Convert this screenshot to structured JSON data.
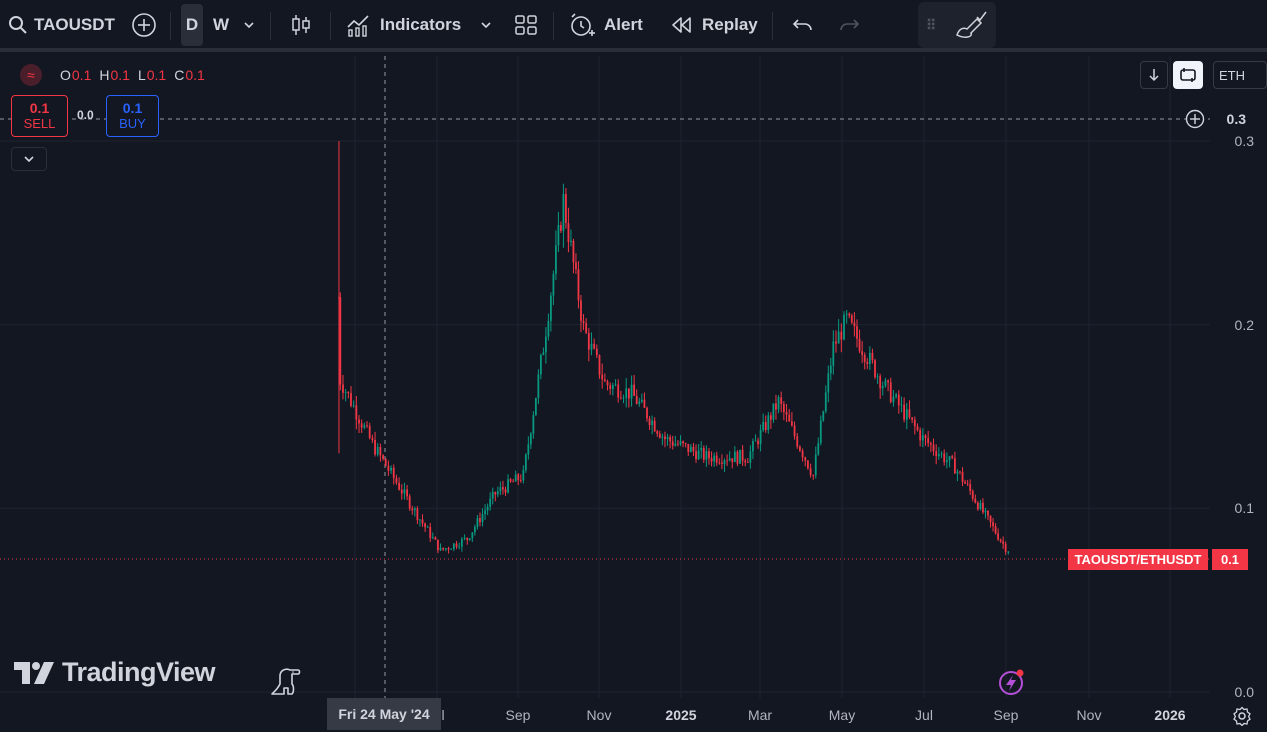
{
  "toolbar": {
    "symbol": "TAOUSDT",
    "interval_d": "D",
    "interval_w": "W",
    "indicators_label": "Indicators",
    "alert_label": "Alert",
    "replay_label": "Replay"
  },
  "legend": {
    "o_key": "O",
    "o_val": "0.1",
    "h_key": "H",
    "h_val": "0.1",
    "l_key": "L",
    "l_val": "0.1",
    "c_key": "C",
    "c_val": "0.1"
  },
  "trade": {
    "sell_price": "0.1",
    "sell_label": "SELL",
    "spread": "0.0",
    "buy_price": "0.1",
    "buy_label": "BUY"
  },
  "right_controls": {
    "currency": "ETH"
  },
  "crosshair": {
    "price_label": "0.3",
    "date_label": "Fri 24 May '24"
  },
  "price_axis": [
    "0.3",
    "0.2",
    "0.1",
    "0.0"
  ],
  "time_axis": [
    "l",
    "Sep",
    "Nov",
    "2025",
    "Mar",
    "May",
    "Jul",
    "Sep",
    "Nov",
    "2026"
  ],
  "price_tag": {
    "name": "TAOUSDT/ETHUSDT",
    "value": "0.1"
  },
  "branding": {
    "logo_text": "TradingView"
  },
  "colors": {
    "up": "#089981",
    "down": "#f23645",
    "background": "#131722",
    "accent": "#2962ff"
  },
  "icons": [
    "search-icon",
    "plus-circle-icon",
    "chevron-down-icon",
    "candlestick-icon",
    "indicators-icon",
    "layout-grid-icon",
    "alarm-clock-icon",
    "replay-icon",
    "undo-icon",
    "redo-icon",
    "drag-handle-icon",
    "brush-icon",
    "download-icon",
    "swap-icon",
    "gear-icon",
    "dinosaur-icon",
    "lightning-icon"
  ],
  "chart_data": {
    "type": "candlestick",
    "series_name": "TAOUSDT/ETHUSDT",
    "ylim": [
      0.0,
      0.3
    ],
    "y_ticks": [
      0.0,
      0.1,
      0.2,
      0.3
    ],
    "x_ticks": [
      "Sep",
      "Nov",
      "2025",
      "Mar",
      "May",
      "Jul",
      "Sep",
      "Nov",
      "2026"
    ],
    "last_value": 0.1,
    "path": [
      [
        "2024-04-20",
        0.3,
        0.13
      ],
      [
        "2024-04-21",
        0.18,
        0.16
      ],
      [
        "2024-05-15",
        0.14,
        0.13
      ],
      [
        "2024-06-10",
        0.11,
        0.1
      ],
      [
        "2024-07-05",
        0.078,
        0.076
      ],
      [
        "2024-07-25",
        0.085,
        0.082
      ],
      [
        "2024-08-15",
        0.11,
        0.106
      ],
      [
        "2024-09-05",
        0.12,
        0.116
      ],
      [
        "2024-09-20",
        0.19,
        0.186
      ],
      [
        "2024-10-05",
        0.27,
        0.265
      ],
      [
        "2024-10-20",
        0.2,
        0.196
      ],
      [
        "2024-11-05",
        0.17,
        0.166
      ],
      [
        "2024-11-25",
        0.165,
        0.16
      ],
      [
        "2024-12-20",
        0.14,
        0.136
      ],
      [
        "2025-01-20",
        0.13,
        0.126
      ],
      [
        "2025-02-20",
        0.13,
        0.126
      ],
      [
        "2025-03-15",
        0.16,
        0.156
      ],
      [
        "2025-04-10",
        0.12,
        0.116
      ],
      [
        "2025-04-25",
        0.19,
        0.186
      ],
      [
        "2025-05-05",
        0.205,
        0.2
      ],
      [
        "2025-06-01",
        0.17,
        0.166
      ],
      [
        "2025-07-01",
        0.14,
        0.136
      ],
      [
        "2025-07-25",
        0.125,
        0.12
      ],
      [
        "2025-08-15",
        0.1,
        0.096
      ],
      [
        "2025-09-01",
        0.08,
        0.077
      ],
      [
        "2025-09-05",
        0.077,
        0.076
      ]
    ]
  }
}
